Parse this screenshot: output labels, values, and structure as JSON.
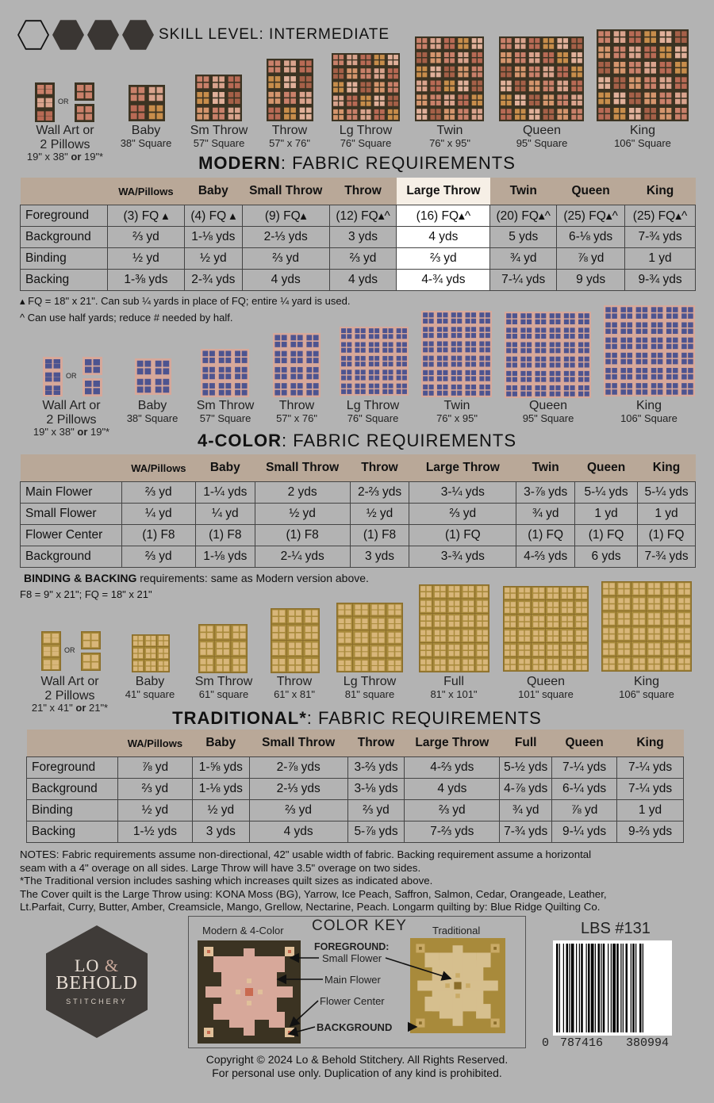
{
  "skill_level": "SKILL LEVEL: INTERMEDIATE",
  "colors": {
    "background": "#b3b3b3",
    "header_bg": "#b9a898",
    "moss": "#3b3322",
    "pink": "#d7a89a",
    "navy": "#4d5490",
    "gold": "#a88a3b"
  },
  "modern": {
    "sizes": [
      {
        "name": "Wall Art or\n2 Pillows",
        "dim": "19\" x 38\" or 19\"*"
      },
      {
        "name": "Baby",
        "dim": "38\" Square"
      },
      {
        "name": "Sm Throw",
        "dim": "57\" Square"
      },
      {
        "name": "Throw",
        "dim": "57\" x 76\""
      },
      {
        "name": "Lg Throw",
        "dim": "76\" Square"
      },
      {
        "name": "Twin",
        "dim": "76\" x 95\""
      },
      {
        "name": "Queen",
        "dim": "95\" Square"
      },
      {
        "name": "King",
        "dim": "106\" Square"
      }
    ],
    "or_label": "OR",
    "heading_bold": "MODERN",
    "heading_rest": ": FABRIC REQUIREMENTS",
    "columns": [
      "WA/Pillows",
      "Baby",
      "Small Throw",
      "Throw",
      "Large Throw",
      "Twin",
      "Queen",
      "King"
    ],
    "rows": [
      {
        "label": "Foreground",
        "cells": [
          "(3) FQ ▴",
          "(4) FQ ▴",
          "(9) FQ▴",
          "(12) FQ▴^",
          "(16) FQ▴^",
          "(20) FQ▴^",
          "(25) FQ▴^",
          "(25) FQ▴^"
        ]
      },
      {
        "label": "Background",
        "cells": [
          "⅔ yd",
          "1-⅛ yds",
          "2-⅓ yds",
          "3 yds",
          "4 yds",
          "5 yds",
          "6-⅛ yds",
          "7-¾ yds"
        ]
      },
      {
        "label": "Binding",
        "cells": [
          "½ yd",
          "½ yd",
          "⅔ yd",
          "⅔ yd",
          "⅔ yd",
          "¾ yd",
          "⅞ yd",
          "1 yd"
        ]
      },
      {
        "label": "Backing",
        "cells": [
          "1-⅜ yds",
          "2-¾ yds",
          "4 yds",
          "4 yds",
          "4-¾ yds",
          "7-¼ yds",
          "9 yds",
          "9-¾ yds"
        ]
      }
    ],
    "note1": "▴ FQ = 18\" x 21\". Can sub ¼ yards in place of FQ; entire ¼ yard is used.",
    "note2": "^ Can use half yards; reduce # needed by half."
  },
  "fourcolor": {
    "sizes": [
      {
        "name": "Wall Art or\n2 Pillows",
        "dim": "19\" x 38\" or 19\"*"
      },
      {
        "name": "Baby",
        "dim": "38\" Square"
      },
      {
        "name": "Sm Throw",
        "dim": "57\" Square"
      },
      {
        "name": "Throw",
        "dim": "57\" x 76\""
      },
      {
        "name": "Lg Throw",
        "dim": "76\" Square"
      },
      {
        "name": "Twin",
        "dim": "76\" x 95\""
      },
      {
        "name": "Queen",
        "dim": "95\" Square"
      },
      {
        "name": "King",
        "dim": "106\" Square"
      }
    ],
    "heading_bold": "4-COLOR",
    "heading_rest": ": FABRIC REQUIREMENTS",
    "columns": [
      "WA/Pillows",
      "Baby",
      "Small  Throw",
      "Throw",
      "Large Throw",
      "Twin",
      "Queen",
      "King"
    ],
    "rows": [
      {
        "label": "Main Flower",
        "cells": [
          "⅔ yd",
          "1-¼ yds",
          "2 yds",
          "2-⅔ yds",
          "3-¼ yds",
          "3-⅞ yds",
          "5-¼ yds",
          "5-¼ yds"
        ]
      },
      {
        "label": "Small Flower",
        "cells": [
          "¼ yd",
          "¼ yd",
          "½ yd",
          "½ yd",
          "⅔ yd",
          "¾ yd",
          "1 yd",
          "1 yd"
        ]
      },
      {
        "label": "Flower Center",
        "cells": [
          "(1) F8",
          "(1) F8",
          "(1) F8",
          "(1) F8",
          "(1) FQ",
          "(1) FQ",
          "(1) FQ",
          "(1) FQ"
        ]
      },
      {
        "label": "Background",
        "cells": [
          "⅔ yd",
          "1-⅛ yds",
          "2-¼ yds",
          "3 yds",
          "3-¾ yds",
          "4-⅔ yds",
          "6 yds",
          "7-¾ yds"
        ]
      }
    ],
    "note_bold": "BINDING & BACKING",
    "note_rest": " requirements: same as Modern version above.",
    "note2": "F8 = 9\" x 21\"; FQ = 18\" x 21\""
  },
  "traditional": {
    "sizes": [
      {
        "name": "Wall Art or\n2 Pillows",
        "dim": "21\" x 41\" or 21\"*"
      },
      {
        "name": "Baby",
        "dim": "41\" square"
      },
      {
        "name": "Sm Throw",
        "dim": "61\" square"
      },
      {
        "name": "Throw",
        "dim": "61\" x 81\""
      },
      {
        "name": "Lg Throw",
        "dim": "81\" square"
      },
      {
        "name": "Full",
        "dim": "81\" x 101\""
      },
      {
        "name": "Queen",
        "dim": "101\" square"
      },
      {
        "name": "King",
        "dim": "106\" square"
      }
    ],
    "heading_bold": "TRADITIONAL*",
    "heading_rest": ": FABRIC REQUIREMENTS",
    "columns": [
      "WA/Pillows",
      "Baby",
      "Small  Throw",
      "Throw",
      "Large Throw",
      "Full",
      "Queen",
      "King"
    ],
    "rows": [
      {
        "label": "Foreground",
        "cells": [
          "⅞ yd",
          "1-⅝ yds",
          "2-⅞ yds",
          "3-⅔ yds",
          "4-⅔ yds",
          "5-½ yds",
          "7-¼ yds",
          "7-¼ yds"
        ]
      },
      {
        "label": "Background",
        "cells": [
          "⅔ yd",
          "1-⅛ yds",
          "2-⅓ yds",
          "3-⅛ yds",
          "4 yds",
          "4-⅞ yds",
          "6-¼ yds",
          "7-¼ yds"
        ]
      },
      {
        "label": "Binding",
        "cells": [
          "½ yd",
          "½ yd",
          "⅔ yd",
          "⅔ yd",
          "⅔ yd",
          "¾ yd",
          "⅞ yd",
          "1 yd"
        ]
      },
      {
        "label": "Backing",
        "cells": [
          "1-½ yds",
          "3 yds",
          "4 yds",
          "5-⅞ yds",
          "7-⅔ yds",
          "7-¾ yds",
          "9-¼ yds",
          "9-⅔ yds"
        ]
      }
    ]
  },
  "notes": [
    "NOTES: Fabric requirements assume non-directional, 42\" usable width of fabric. Backing requirement assume a horizontal",
    "seam with a 4\" overage on all sides. Large Throw will have 3.5\" overage on two sides.",
    "*The Traditional version includes sashing which increases quilt sizes as indicated above.",
    "The Cover quilt is the Large Throw using: KONA Moss (BG), Yarrow, Ice Peach, Saffron, Salmon, Cedar, Orangeade, Leather,",
    "Lt.Parfait, Curry, Butter, Amber, Creamsicle, Mango, Grellow, Nectarine, Peach. Longarm quilting by: Blue Ridge Quilting Co."
  ],
  "logo": {
    "line1": "LO & ",
    "amp": "&",
    "line2": "BEHOLD",
    "line3": "STITCHERY"
  },
  "color_key": {
    "title": "COLOR KEY",
    "modern_label": "Modern & 4-Color",
    "traditional_label": "Traditional",
    "foreground": "FOREGROUND:",
    "small_flower": "Small Flower",
    "main_flower": "Main Flower",
    "flower_center": "Flower Center",
    "background": "BACKGROUND"
  },
  "pattern_code": "LBS #131",
  "barcode_number": {
    "first": "0",
    "mid1": "787416",
    "mid2": "380994",
    "last": "4"
  },
  "copyright": [
    "Copyright © 2024 Lo & Behold Stitchery. All Rights Reserved.",
    "For personal use only. Duplication of any kind is prohibited."
  ]
}
